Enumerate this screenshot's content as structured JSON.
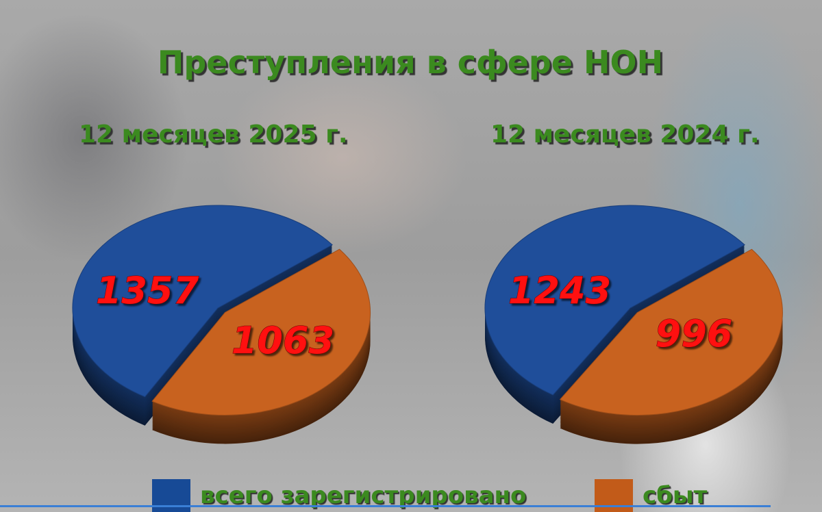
{
  "title": "Преступления в сфере НОН",
  "chart_data": [
    {
      "type": "pie",
      "title": "12 месяцев 2025 г.",
      "categories": [
        "всего зарегистрировано",
        "сбыт"
      ],
      "values": [
        1357,
        1063
      ],
      "colors": [
        "#1f4e9a",
        "#c8621f"
      ],
      "style": "3d-exploded"
    },
    {
      "type": "pie",
      "title": "12 месяцев 2024 г.",
      "categories": [
        "всего зарегистрировано",
        "сбыт"
      ],
      "values": [
        1243,
        996
      ],
      "colors": [
        "#1f4e9a",
        "#c8621f"
      ],
      "style": "3d-exploded"
    }
  ],
  "legend": [
    {
      "label": "всего зарегистрировано",
      "color": "#174a96"
    },
    {
      "label": "сбыт",
      "color": "#c25b19"
    }
  ],
  "label_color": "#ff1010"
}
